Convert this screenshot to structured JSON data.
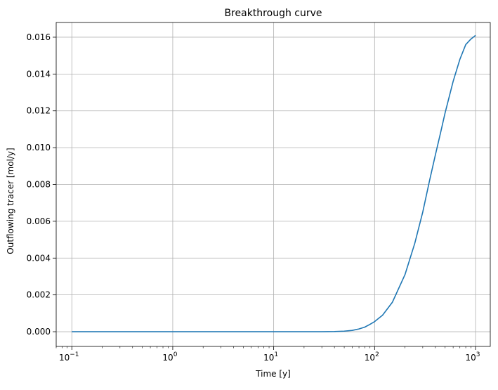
{
  "chart_data": {
    "type": "line",
    "title": "Breakthrough curve",
    "xlabel": "Time [y]",
    "ylabel": "Outflowing tracer [mol/y]",
    "xscale": "log",
    "xlim": [
      0.07,
      1400
    ],
    "ylim": [
      -0.0008,
      0.0168
    ],
    "grid": true,
    "x_ticks": [
      {
        "value": 0.1,
        "base": "10",
        "exp": "−1"
      },
      {
        "value": 1,
        "base": "10",
        "exp": "0"
      },
      {
        "value": 10,
        "base": "10",
        "exp": "1"
      },
      {
        "value": 100,
        "base": "10",
        "exp": "2"
      },
      {
        "value": 1000,
        "base": "10",
        "exp": "3"
      }
    ],
    "y_ticks": [
      {
        "value": 0.0,
        "label": "0.000"
      },
      {
        "value": 0.002,
        "label": "0.002"
      },
      {
        "value": 0.004,
        "label": "0.004"
      },
      {
        "value": 0.006,
        "label": "0.006"
      },
      {
        "value": 0.008,
        "label": "0.008"
      },
      {
        "value": 0.01,
        "label": "0.010"
      },
      {
        "value": 0.012,
        "label": "0.012"
      },
      {
        "value": 0.014,
        "label": "0.014"
      },
      {
        "value": 0.016,
        "label": "0.016"
      }
    ],
    "series": [
      {
        "color": "#1f77b4",
        "x": [
          0.1,
          1,
          10,
          20,
          30,
          40,
          50,
          60,
          70,
          80,
          90,
          100,
          120,
          150,
          200,
          250,
          300,
          350,
          400,
          450,
          500,
          600,
          700,
          800,
          900,
          1000
        ],
        "y": [
          0.0,
          0.0,
          0.0,
          0.0,
          0.0,
          1e-05,
          3e-05,
          7e-05,
          0.00015,
          0.00025,
          0.0004,
          0.00055,
          0.0009,
          0.0016,
          0.0031,
          0.0048,
          0.0065,
          0.0082,
          0.0096,
          0.0108,
          0.0119,
          0.0136,
          0.0148,
          0.0156,
          0.0159,
          0.0161
        ]
      }
    ]
  }
}
